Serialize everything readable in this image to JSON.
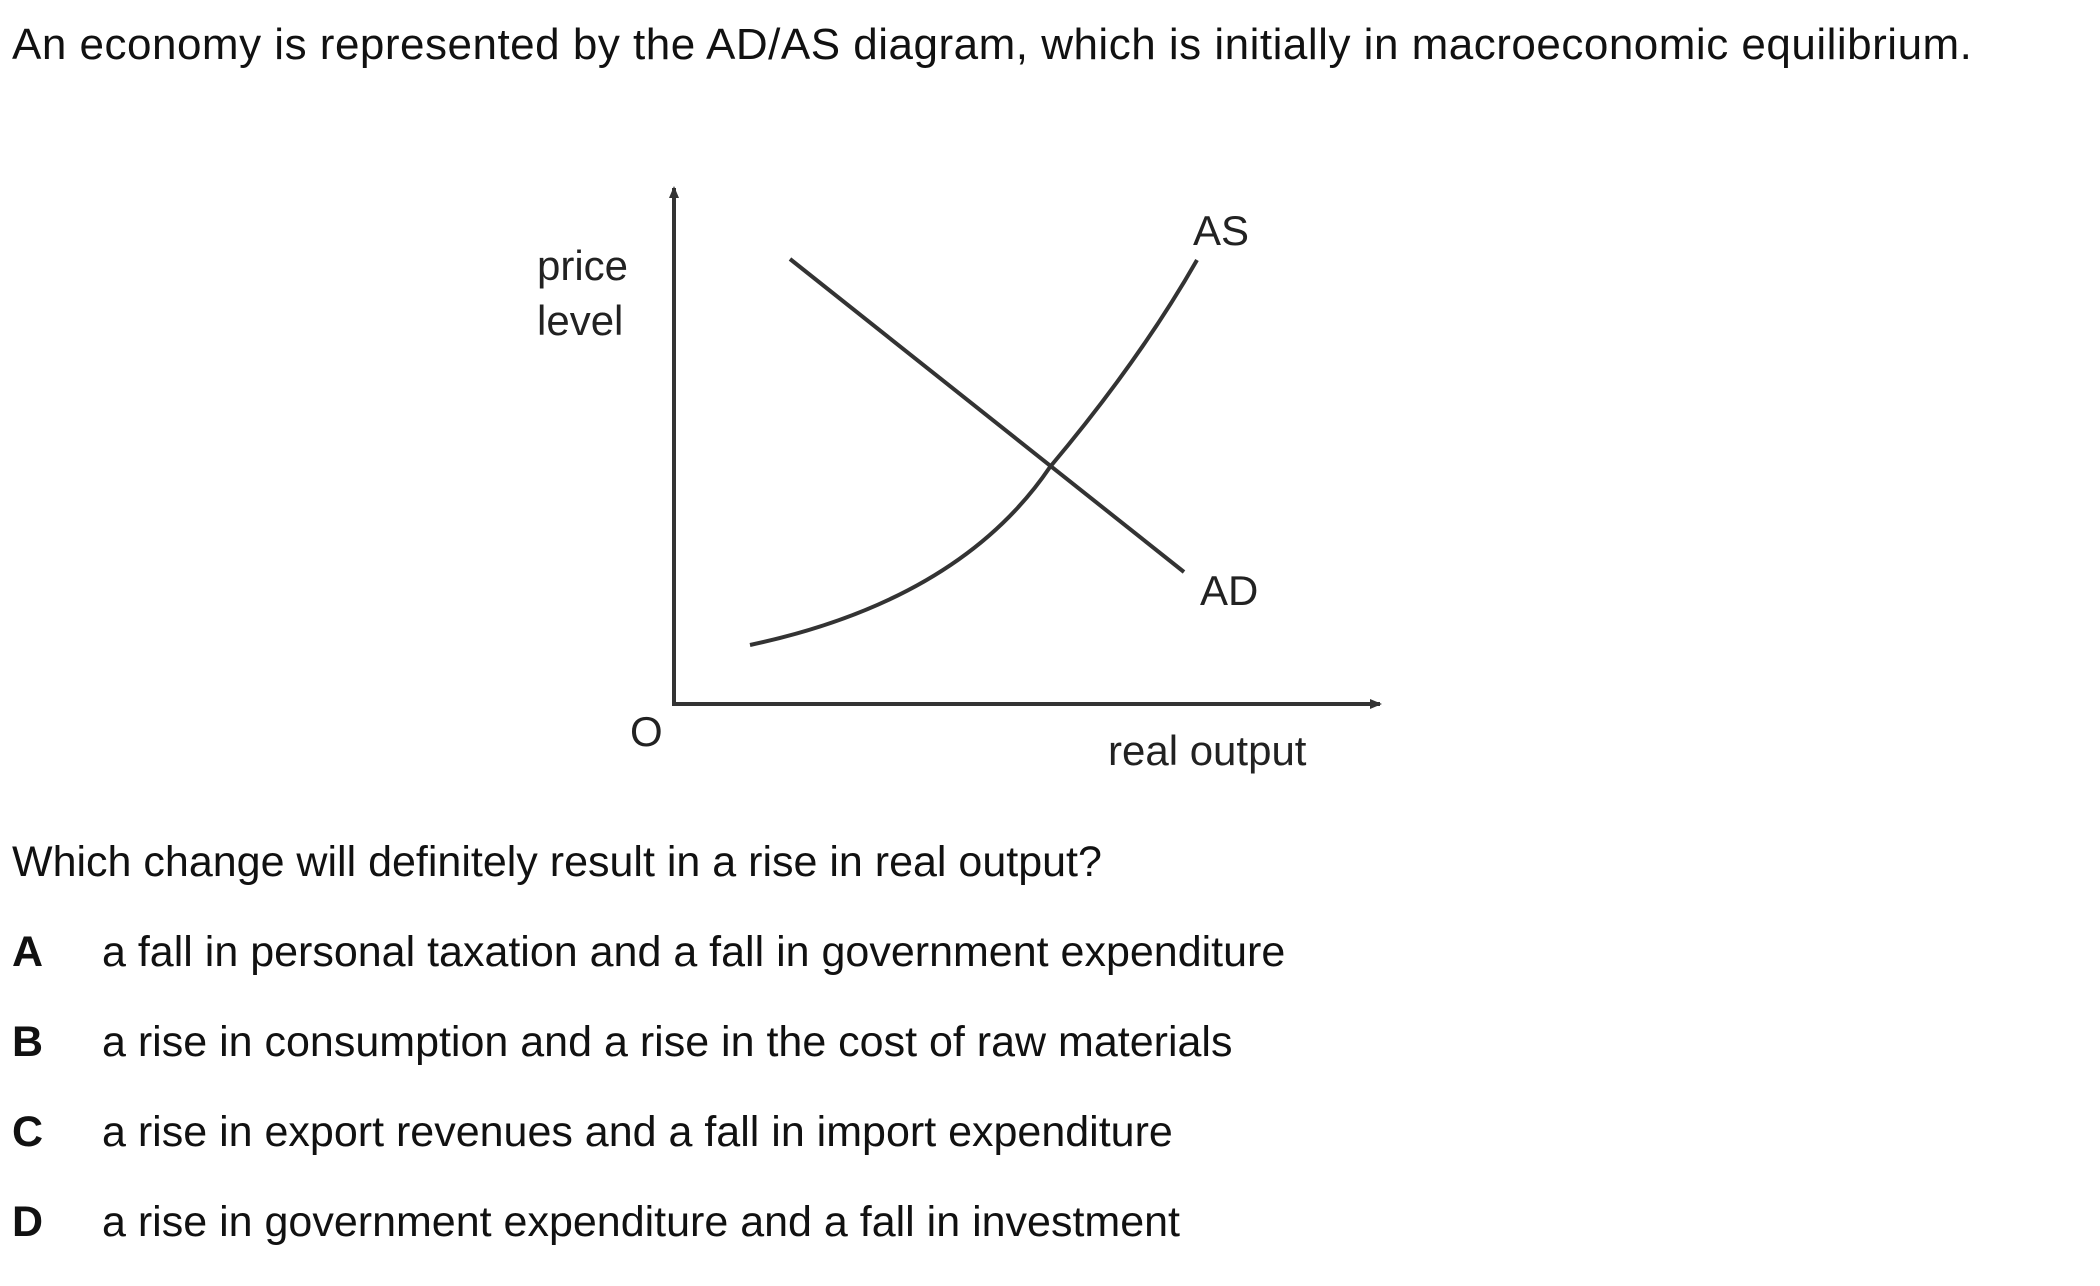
{
  "intro_text": "An economy is represented by the AD/AS diagram, which is initially in macroeconomic equilibrium.",
  "diagram": {
    "y_axis_label_line1": "price",
    "y_axis_label_line2": "level",
    "x_axis_label": "real output",
    "origin_label": "O",
    "as_label": "AS",
    "ad_label": "AD"
  },
  "question": "Which change will definitely result in a rise in real output?",
  "options": [
    {
      "letter": "A",
      "text": "a fall in personal taxation and a fall in government expenditure"
    },
    {
      "letter": "B",
      "text": "a rise in consumption and a rise in the cost of raw materials"
    },
    {
      "letter": "C",
      "text": "a rise in export revenues and a fall in import expenditure"
    },
    {
      "letter": "D",
      "text": "a rise in government expenditure and a fall in investment"
    }
  ]
}
